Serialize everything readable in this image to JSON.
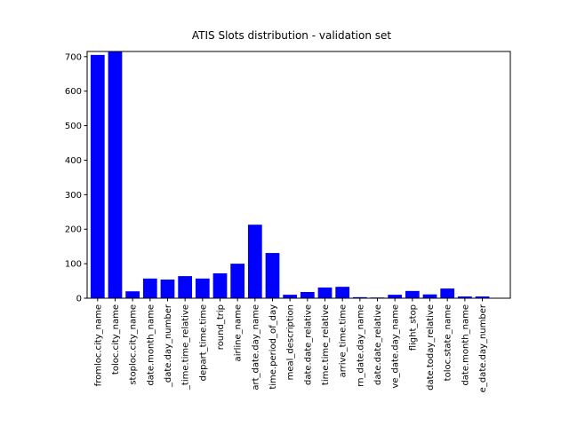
{
  "chart_data": {
    "type": "bar",
    "title": "ATIS Slots distribution - validation set",
    "categories": [
      "fromloc.city_name",
      "toloc.city_name",
      "stoploc.city_name",
      "date.month_name",
      "_date.day_number",
      "_time.time_relative",
      "depart_time.time",
      "round_trip",
      "airline_name",
      "art_date.day_name",
      "time.period_of_day",
      "meal_description",
      "date.date_relative",
      "time.time_relative",
      "arrive_time.time",
      "rn_date.day_name",
      "date.date_relative",
      "ve_date.day_name",
      "flight_stop",
      "date.today_relative",
      "toloc.state_name",
      "date.month_name",
      "e_date.day_number"
    ],
    "values": [
      705,
      720,
      20,
      57,
      54,
      64,
      57,
      72,
      100,
      213,
      131,
      10,
      18,
      31,
      33,
      3,
      2,
      10,
      21,
      11,
      28,
      5,
      5
    ],
    "color": "#0000ff",
    "ylim": [
      0,
      715
    ],
    "yticks": [
      0,
      100,
      200,
      300,
      400,
      500,
      600,
      700
    ]
  }
}
